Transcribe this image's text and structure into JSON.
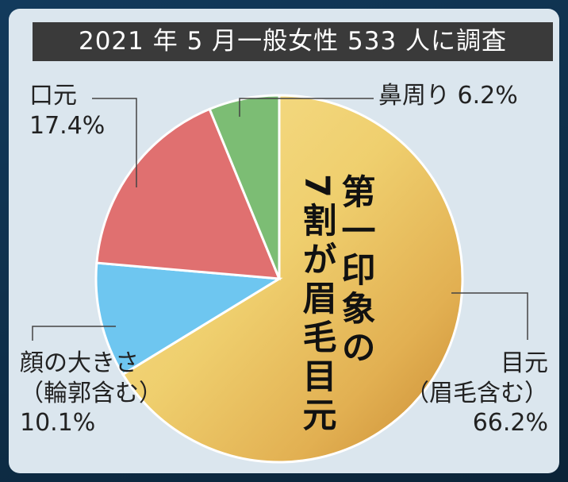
{
  "header": {
    "title": "2021 年 5 月一般女性 533 人に調査"
  },
  "headline": {
    "column1": "第一印象の",
    "column2": "7割が眉毛目元"
  },
  "chart_data": {
    "type": "pie",
    "start_angle_deg": 0,
    "direction": "clockwise",
    "slices": [
      {
        "label_lines": [
          "目元",
          "（眉毛含む）"
        ],
        "value": 66.2,
        "value_text": "66.2%",
        "color": "#f0cd6c"
      },
      {
        "label_lines": [
          "顔の大きさ",
          "（輪郭含む）"
        ],
        "value": 10.1,
        "value_text": "10.1%",
        "color": "#6ec6f0"
      },
      {
        "label_lines": [
          "口元"
        ],
        "value": 17.4,
        "value_text": "17.4%",
        "color": "#e07070"
      },
      {
        "label_lines": [
          "鼻周り"
        ],
        "value": 6.2,
        "value_text": "6.2%",
        "color": "#7cbd74"
      }
    ]
  }
}
